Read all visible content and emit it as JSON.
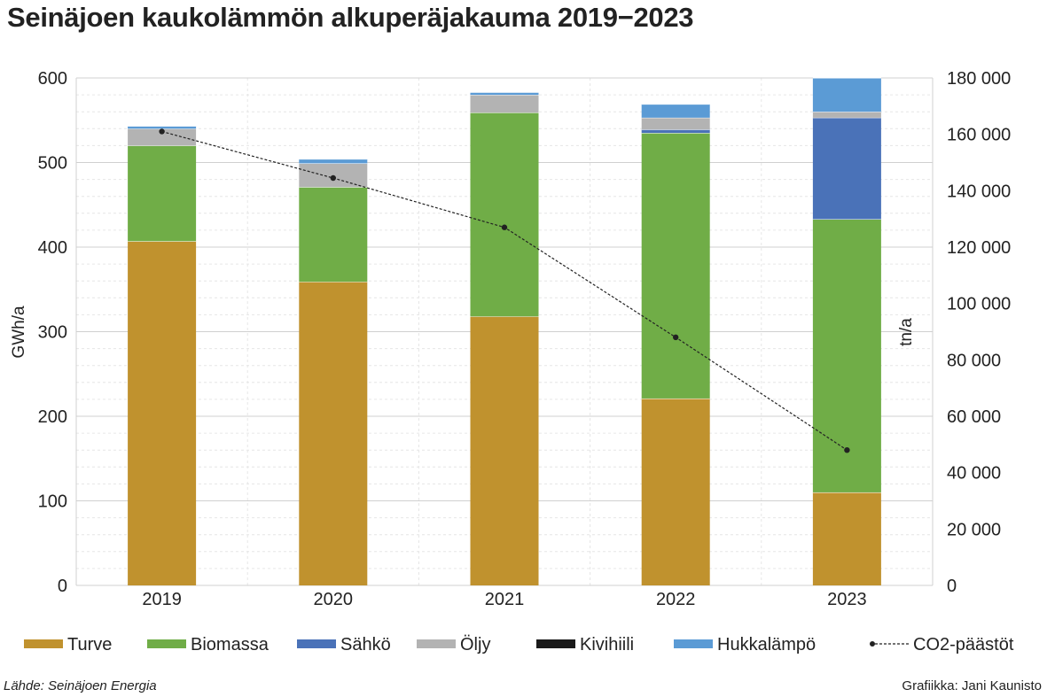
{
  "title": "Seinäjoen kaukolämmön alkuperäjakauma 2019−2023",
  "source": "Lähde: Seinäjoen Energia",
  "credit": "Grafiikka: Jani Kaunisto",
  "chart_data": {
    "type": "bar",
    "stacked": true,
    "categories": [
      "2019",
      "2020",
      "2021",
      "2022",
      "2023"
    ],
    "series": [
      {
        "name": "Turve",
        "color": "#c0922e",
        "values": [
          407,
          359,
          318,
          221,
          110
        ]
      },
      {
        "name": "Biomassa",
        "color": "#70ad47",
        "values": [
          113,
          112,
          241,
          314,
          323
        ]
      },
      {
        "name": "Sähkö",
        "color": "#4a72b8",
        "values": [
          0,
          0,
          0,
          4,
          120
        ]
      },
      {
        "name": "Öljy",
        "color": "#b3b3b3",
        "values": [
          20,
          28,
          21,
          14,
          7
        ]
      },
      {
        "name": "Kivihiili",
        "color": "#1a1a1a",
        "values": [
          0,
          0,
          0,
          0,
          0
        ]
      },
      {
        "name": "Hukkalämpö",
        "color": "#5b9bd5",
        "values": [
          3,
          5,
          3,
          16,
          40
        ]
      }
    ],
    "line_series": {
      "name": "CO2-päästöt",
      "color": "#222222",
      "axis": "right",
      "values": [
        161000,
        144500,
        127000,
        88000,
        48000
      ]
    },
    "ylabel": "GWh/a",
    "ylim": [
      0,
      600
    ],
    "yticks": [
      0,
      100,
      200,
      300,
      400,
      500,
      600
    ],
    "ytick_labels": [
      "0",
      "100",
      "200",
      "300",
      "400",
      "500",
      "600"
    ],
    "y2label": "tn/a",
    "y2lim": [
      0,
      180000
    ],
    "y2ticks": [
      0,
      20000,
      40000,
      60000,
      80000,
      100000,
      120000,
      140000,
      160000,
      180000
    ],
    "y2tick_labels": [
      "0",
      "20 000",
      "40 000",
      "60 000",
      "80 000",
      "100 000",
      "120 000",
      "140 000",
      "160 000",
      "180 000"
    ],
    "grid": true,
    "legend_position": "bottom"
  }
}
